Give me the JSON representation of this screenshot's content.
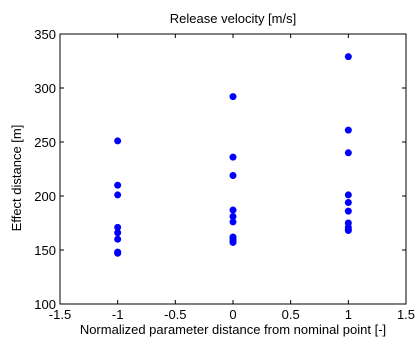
{
  "chart_data": {
    "type": "scatter",
    "title": "Release velocity [m/s]",
    "xlabel": "Normalized parameter distance from nominal point [-]",
    "ylabel": "Effect distance [m]",
    "xlim": [
      -1.5,
      1.5
    ],
    "ylim": [
      100,
      350
    ],
    "xticks": [
      -1.5,
      -1,
      -0.5,
      0,
      0.5,
      1,
      1.5
    ],
    "xtick_labels": [
      "-1.5",
      "-1",
      "-0.5",
      "0",
      "0.5",
      "1",
      "1.5"
    ],
    "yticks": [
      100,
      150,
      200,
      250,
      300,
      350
    ],
    "ytick_labels": [
      "100",
      "150",
      "200",
      "250",
      "300",
      "350"
    ],
    "grid": false,
    "marker_color": "#0000ff",
    "series": [
      {
        "x": [
          -1,
          -1,
          -1,
          -1,
          -1,
          -1,
          -1,
          -1,
          0,
          0,
          0,
          0,
          0,
          0,
          0,
          0,
          0,
          0,
          1,
          1,
          1,
          1,
          1,
          1,
          1,
          1,
          1,
          1
        ],
        "y": [
          251,
          210,
          201,
          171,
          166,
          160,
          148,
          147,
          292,
          236,
          219,
          187,
          181,
          176,
          162,
          160,
          158,
          157,
          329,
          261,
          240,
          201,
          194,
          186,
          175,
          171,
          169,
          168
        ]
      }
    ]
  }
}
